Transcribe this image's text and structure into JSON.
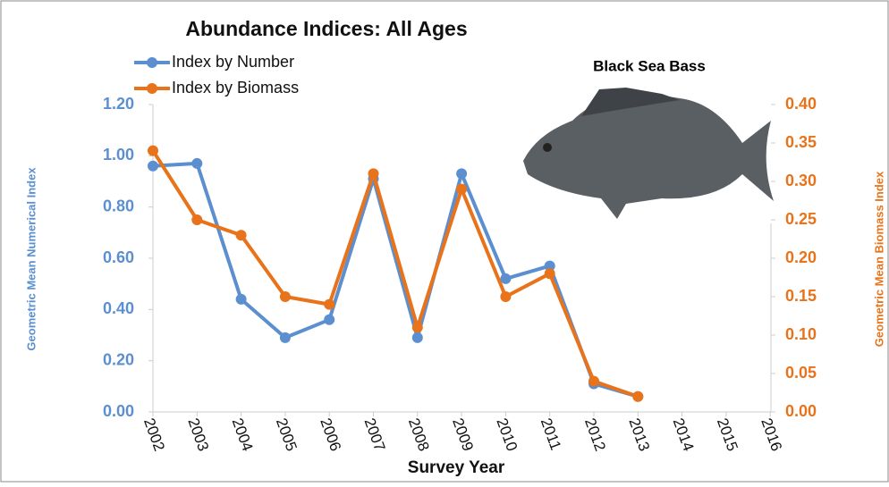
{
  "chart_data": {
    "type": "line",
    "title": "Abundance Indices:  All Ages",
    "annotation": "Black Sea Bass",
    "x_label": "Survey Year",
    "y_label": "Geometric Mean Numerical Index",
    "y2_label": "Geometric Mean Biomass Index",
    "categories": [
      "2002",
      "2003",
      "2004",
      "2005",
      "2006",
      "2007",
      "2008",
      "2009",
      "2010",
      "2011",
      "2012",
      "2013",
      "2014",
      "2015",
      "2016"
    ],
    "series": [
      {
        "name": "Index by Number",
        "color": "#5b8fd0",
        "values": [
          0.96,
          0.97,
          0.44,
          0.29,
          0.36,
          0.91,
          0.29,
          0.93,
          0.52,
          0.57,
          0.11,
          0.06,
          null,
          null,
          null
        ]
      },
      {
        "name": "Index by Biomass",
        "color": "#e8731a",
        "axis": "y2",
        "values": [
          0.34,
          0.25,
          0.23,
          0.15,
          0.14,
          0.31,
          0.11,
          0.29,
          0.15,
          0.18,
          0.04,
          0.02,
          null,
          null,
          null
        ]
      }
    ],
    "ylim": [
      0,
      1.2
    ],
    "yticks": [
      {
        "value": 0,
        "label": "0.00"
      },
      {
        "value": 0.2,
        "label": "0.20"
      },
      {
        "value": 0.4,
        "label": "0.40"
      },
      {
        "value": 0.6,
        "label": "0.60"
      },
      {
        "value": 0.8,
        "label": "0.80"
      },
      {
        "value": 1,
        "label": "1.00"
      },
      {
        "value": 1.2,
        "label": "1.20"
      }
    ],
    "y2lim": [
      0,
      0.4
    ],
    "y2ticks": [
      {
        "value": 0,
        "label": "0.00"
      },
      {
        "value": 0.05,
        "label": "0.05"
      },
      {
        "value": 0.1,
        "label": "0.10"
      },
      {
        "value": 0.15,
        "label": "0.15"
      },
      {
        "value": 0.2,
        "label": "0.20"
      },
      {
        "value": 0.25,
        "label": "0.25"
      },
      {
        "value": 0.3,
        "label": "0.30"
      },
      {
        "value": 0.35,
        "label": "0.35"
      },
      {
        "value": 0.4,
        "label": "0.40"
      }
    ],
    "grid": false,
    "legend": "top-left"
  }
}
